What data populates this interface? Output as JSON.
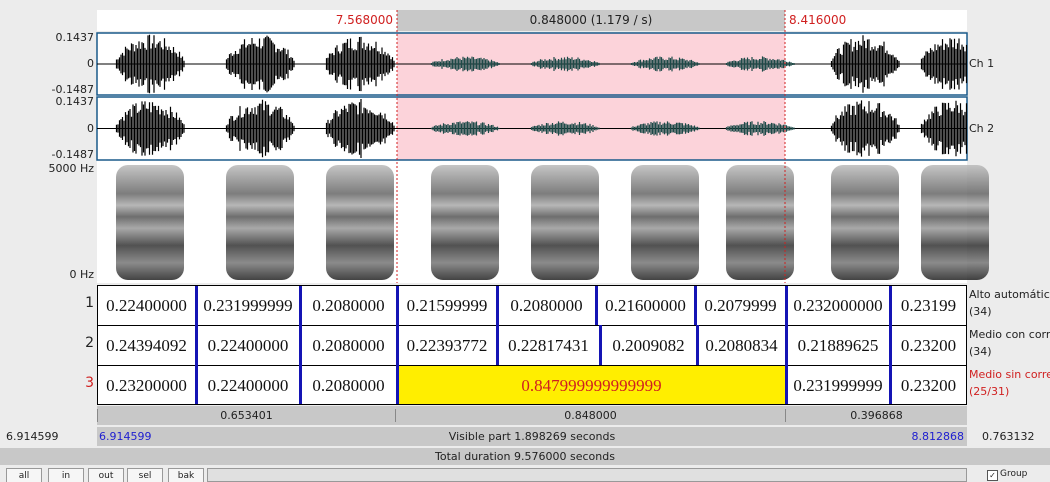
{
  "ruler": {
    "left": "7.568000",
    "center": "0.848000 (1.179 / s)",
    "right": "8.416000"
  },
  "channels": [
    {
      "label": "Ch 1",
      "max": "0.1437",
      "zero": "0",
      "min": "-0.1487"
    },
    {
      "label": "Ch 2",
      "max": "0.1437",
      "zero": "0",
      "min": "-0.1487"
    }
  ],
  "spectrogram": {
    "top": "5000 Hz",
    "bottom": "0 Hz"
  },
  "tiers": [
    {
      "number": "1",
      "name": "Alto automátic",
      "count": "(34)",
      "intervals": [
        "0.22400000",
        "0.231999999",
        "0.2080000",
        "0.21599999",
        "0.2080000",
        "0.21600000",
        "0.2079999",
        "0.232000000",
        "0.23199"
      ]
    },
    {
      "number": "2",
      "name": "Medio con corr",
      "count": "(34)",
      "intervals": [
        "0.24394092",
        "0.22400000",
        "0.2080000",
        "0.22393772",
        "0.22817431",
        "0.2009082",
        "0.2080834",
        "0.21889625",
        "0.23200"
      ]
    },
    {
      "number": "3",
      "name": "Medio sin corre",
      "count": "(25/31)",
      "intervals": [
        "0.23200000",
        "0.22400000",
        "0.2080000",
        "0.847999999999999",
        "0.231999999",
        "0.23200"
      ]
    }
  ],
  "durations": [
    "0.653401",
    "0.848000",
    "0.396868"
  ],
  "visible": {
    "start_total": "6.914599",
    "start": "6.914599",
    "label": "Visible part 1.898269 seconds",
    "end": "8.812868",
    "end_total": "0.763132"
  },
  "total": "Total duration 9.576000 seconds",
  "buttons": [
    "all",
    "in",
    "out",
    "sel",
    "bak"
  ],
  "group": "Group"
}
